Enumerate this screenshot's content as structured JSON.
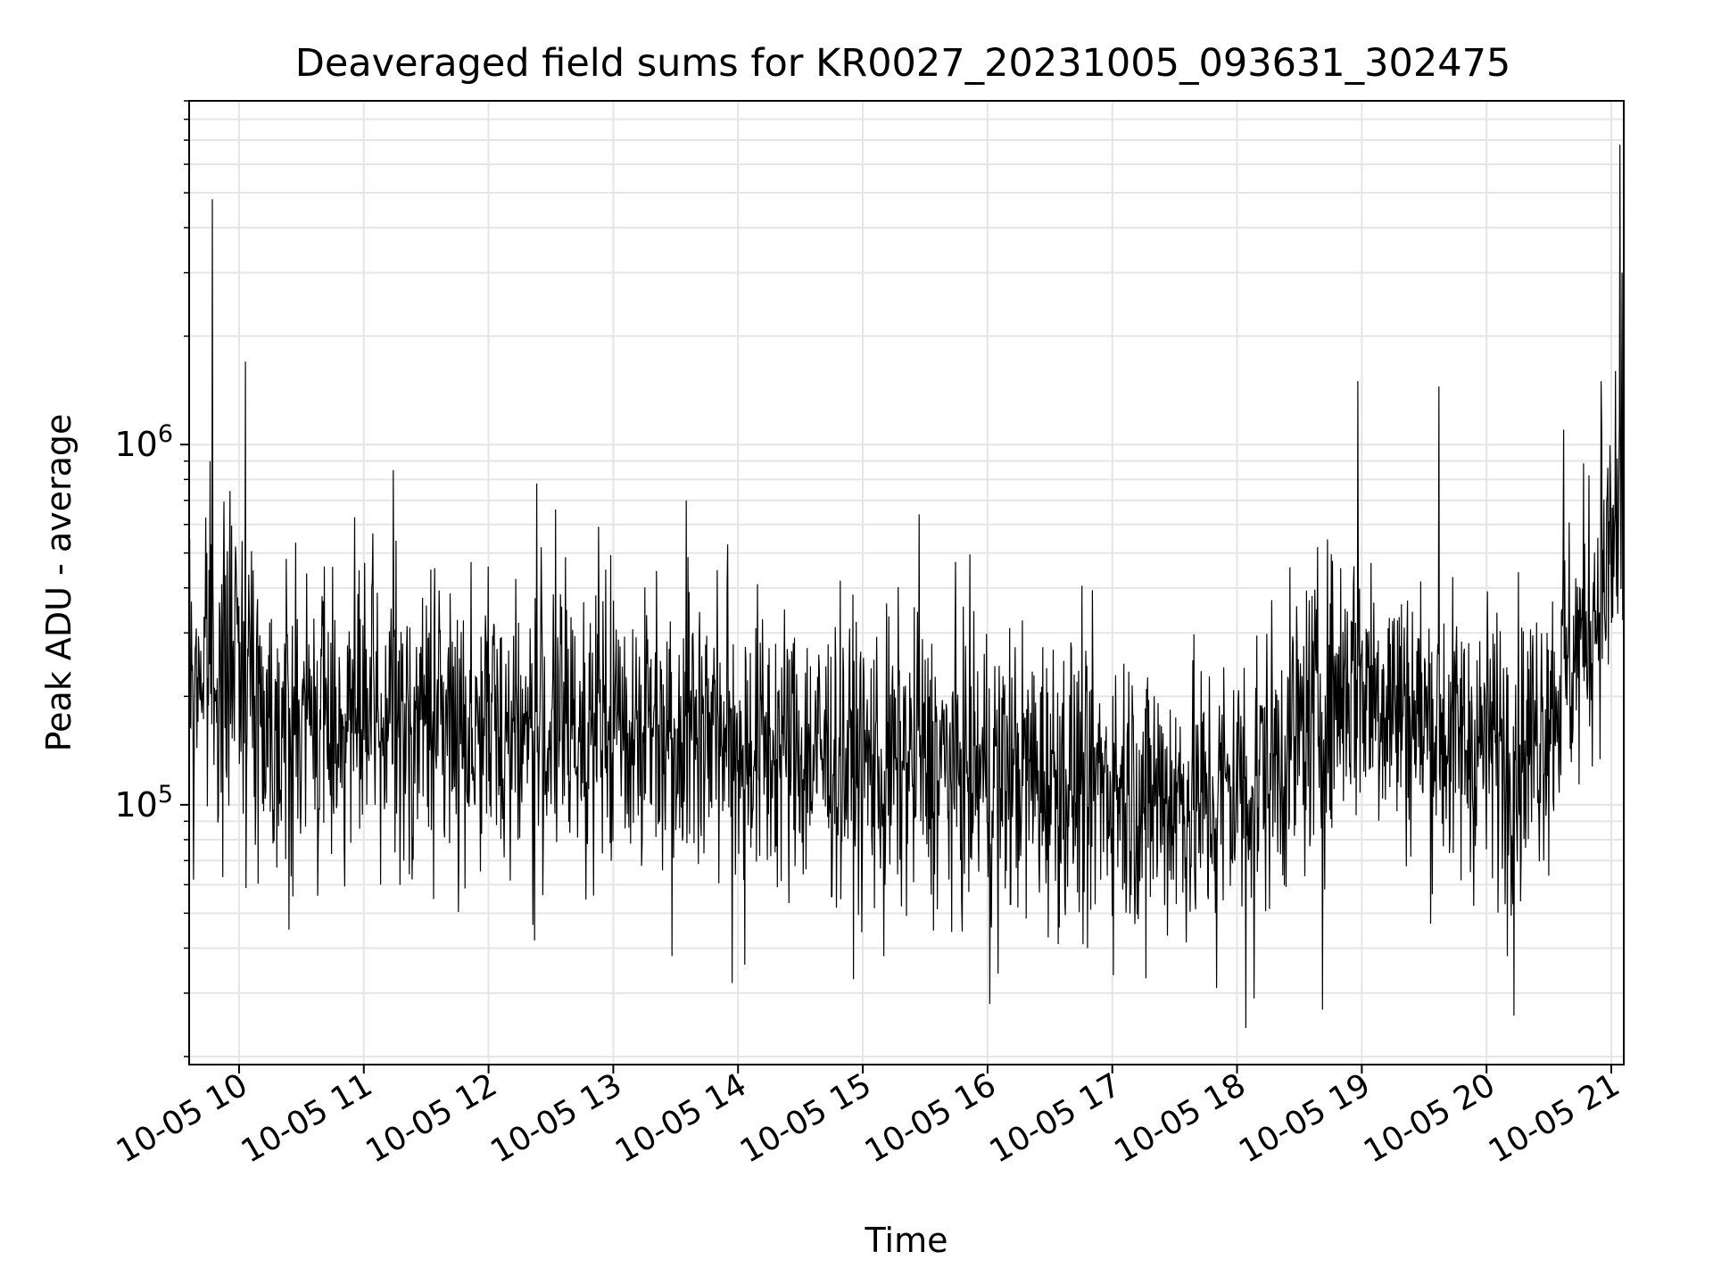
{
  "chart_data": {
    "type": "line",
    "title": "Deaveraged field sums for KR0027_20231005_093631_302475",
    "xlabel": "Time",
    "ylabel": "Peak ADU - average",
    "yscale": "log",
    "grid": true,
    "xlim": [
      "2023-10-05 09:36",
      "2023-10-05 21:06"
    ],
    "ylim": [
      19000,
      9000000
    ],
    "x_ticks": [
      {
        "time": "10:00",
        "label": "10-05 10"
      },
      {
        "time": "11:00",
        "label": "10-05 11"
      },
      {
        "time": "12:00",
        "label": "10-05 12"
      },
      {
        "time": "13:00",
        "label": "10-05 13"
      },
      {
        "time": "14:00",
        "label": "10-05 14"
      },
      {
        "time": "15:00",
        "label": "10-05 15"
      },
      {
        "time": "16:00",
        "label": "10-05 16"
      },
      {
        "time": "17:00",
        "label": "10-05 17"
      },
      {
        "time": "18:00",
        "label": "10-05 18"
      },
      {
        "time": "19:00",
        "label": "10-05 19"
      },
      {
        "time": "20:00",
        "label": "10-05 20"
      },
      {
        "time": "21:00",
        "label": "10-05 21"
      }
    ],
    "y_ticks": [
      {
        "value": 100000,
        "label": "10",
        "exp": "5"
      },
      {
        "value": 1000000,
        "label": "10",
        "exp": "6"
      }
    ],
    "series": [
      {
        "color": "#000000",
        "baseline_envelope": [
          {
            "time": "09:36",
            "value": 250000
          },
          {
            "time": "10:00",
            "value": 260000
          },
          {
            "time": "10:15",
            "value": 170000
          },
          {
            "time": "11:00",
            "value": 175000
          },
          {
            "time": "12:00",
            "value": 165000
          },
          {
            "time": "13:00",
            "value": 165000
          },
          {
            "time": "13:40",
            "value": 175000
          },
          {
            "time": "14:00",
            "value": 150000
          },
          {
            "time": "15:00",
            "value": 130000
          },
          {
            "time": "16:00",
            "value": 125000
          },
          {
            "time": "17:00",
            "value": 115000
          },
          {
            "time": "17:45",
            "value": 100000
          },
          {
            "time": "18:20",
            "value": 135000
          },
          {
            "time": "18:55",
            "value": 230000
          },
          {
            "time": "19:15",
            "value": 195000
          },
          {
            "time": "19:45",
            "value": 150000
          },
          {
            "time": "20:20",
            "value": 145000
          },
          {
            "time": "20:45",
            "value": 280000
          },
          {
            "time": "21:06",
            "value": 600000
          }
        ],
        "spikes": [
          {
            "time": "09:38",
            "value": 62000
          },
          {
            "time": "09:42",
            "value": 180000
          },
          {
            "time": "09:46",
            "value": 900000
          },
          {
            "time": "09:47",
            "value": 4800000
          },
          {
            "time": "09:50",
            "value": 93000
          },
          {
            "time": "09:52",
            "value": 63000
          },
          {
            "time": "10:03",
            "value": 1700000
          },
          {
            "time": "10:24",
            "value": 45000
          },
          {
            "time": "11:08",
            "value": 60000
          },
          {
            "time": "11:14",
            "value": 850000
          },
          {
            "time": "11:19",
            "value": 70000
          },
          {
            "time": "11:32",
            "value": 450000
          },
          {
            "time": "12:22",
            "value": 42000
          },
          {
            "time": "12:23",
            "value": 780000
          },
          {
            "time": "12:32",
            "value": 660000
          },
          {
            "time": "13:28",
            "value": 38000
          },
          {
            "time": "13:35",
            "value": 700000
          },
          {
            "time": "13:57",
            "value": 32000
          },
          {
            "time": "14:03",
            "value": 36000
          },
          {
            "time": "15:10",
            "value": 38000
          },
          {
            "time": "15:27",
            "value": 640000
          },
          {
            "time": "16:01",
            "value": 28000
          },
          {
            "time": "16:05",
            "value": 34000
          },
          {
            "time": "16:48",
            "value": 40000
          },
          {
            "time": "17:16",
            "value": 33000
          },
          {
            "time": "17:50",
            "value": 31000
          },
          {
            "time": "18:04",
            "value": 24000
          },
          {
            "time": "18:08",
            "value": 29000
          },
          {
            "time": "18:41",
            "value": 27000
          },
          {
            "time": "18:58",
            "value": 1500000
          },
          {
            "time": "19:37",
            "value": 1450000
          },
          {
            "time": "20:10",
            "value": 38000
          },
          {
            "time": "20:13",
            "value": 26000
          },
          {
            "time": "20:37",
            "value": 1100000
          },
          {
            "time": "20:55",
            "value": 1500000
          },
          {
            "time": "21:02",
            "value": 1600000
          },
          {
            "time": "21:04",
            "value": 6800000
          },
          {
            "time": "21:05",
            "value": 3000000
          }
        ]
      }
    ]
  }
}
